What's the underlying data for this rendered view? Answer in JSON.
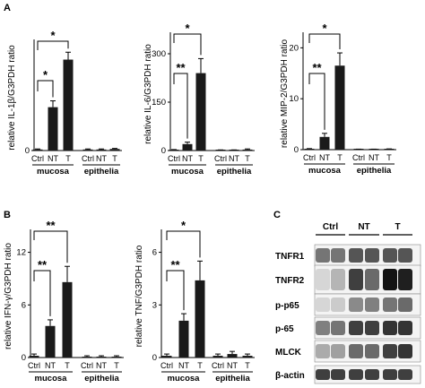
{
  "panels": {
    "A": "A",
    "B": "B",
    "C": "C"
  },
  "chart_data": [
    {
      "type": "bar",
      "panel": "A",
      "ylabel": "relative IL-1β/G3PDH ratio",
      "categories": [
        "Ctrl",
        "NT",
        "T",
        "Ctrl",
        "NT",
        "T"
      ],
      "groups": [
        "mucosa",
        "epithelia"
      ],
      "values": [
        0.1,
        4.1,
        8.6,
        0.1,
        0.1,
        0.15
      ],
      "errors": [
        0.05,
        0.6,
        0.7,
        0.05,
        0.05,
        0.05
      ],
      "ylim": [
        0,
        10
      ],
      "yticks": [
        "0"
      ],
      "significance": [
        {
          "from": 0,
          "to": 1,
          "label": "*"
        },
        {
          "from": 0,
          "to": 2,
          "label": "*"
        }
      ]
    },
    {
      "type": "bar",
      "panel": "A",
      "ylabel": "relative IL-6/G3PDH ratio",
      "categories": [
        "Ctrl",
        "NT",
        "T",
        "Ctrl",
        "NT",
        "T"
      ],
      "groups": [
        "mucosa",
        "epithelia"
      ],
      "values": [
        2,
        20,
        240,
        1,
        1,
        3
      ],
      "errors": [
        1,
        6,
        45,
        1,
        1,
        2
      ],
      "ylim": [
        0,
        350
      ],
      "yticks": [
        "0",
        "150",
        "300"
      ],
      "significance": [
        {
          "from": 0,
          "to": 1,
          "label": "**"
        },
        {
          "from": 0,
          "to": 2,
          "label": "*"
        }
      ]
    },
    {
      "type": "bar",
      "panel": "A",
      "ylabel": "relative MIP-2/G3PDH ratio",
      "categories": [
        "Ctrl",
        "NT",
        "T",
        "Ctrl",
        "NT",
        "T"
      ],
      "groups": [
        "mucosa",
        "epithelia"
      ],
      "values": [
        0.1,
        2.5,
        16.5,
        0.05,
        0.05,
        0.1
      ],
      "errors": [
        0.1,
        0.7,
        2.5,
        0.05,
        0.05,
        0.05
      ],
      "ylim": [
        0,
        22
      ],
      "yticks": [
        "0",
        "10",
        "20"
      ],
      "significance": [
        {
          "from": 0,
          "to": 1,
          "label": "**"
        },
        {
          "from": 0,
          "to": 2,
          "label": "*"
        }
      ]
    },
    {
      "type": "bar",
      "panel": "B",
      "ylabel": "relative IFN-γ/G3PDH ratio",
      "categories": [
        "Ctrl",
        "NT",
        "T",
        "Ctrl",
        "NT",
        "T"
      ],
      "groups": [
        "mucosa",
        "epithelia"
      ],
      "values": [
        0.2,
        3.6,
        8.6,
        0.1,
        0.1,
        0.1
      ],
      "errors": [
        0.2,
        0.7,
        1.8,
        0.1,
        0.1,
        0.1
      ],
      "ylim": [
        0,
        14
      ],
      "yticks": [
        "0",
        "6",
        "12"
      ],
      "significance": [
        {
          "from": 0,
          "to": 1,
          "label": "**"
        },
        {
          "from": 0,
          "to": 2,
          "label": "**"
        }
      ]
    },
    {
      "type": "bar",
      "panel": "B",
      "ylabel": "relative TNF/G3PDH ratio",
      "categories": [
        "Ctrl",
        "NT",
        "T",
        "Ctrl",
        "NT",
        "T"
      ],
      "groups": [
        "mucosa",
        "epithelia"
      ],
      "values": [
        0.1,
        2.1,
        4.4,
        0.1,
        0.2,
        0.1
      ],
      "errors": [
        0.1,
        0.4,
        1.1,
        0.1,
        0.15,
        0.1
      ],
      "ylim": [
        0,
        7
      ],
      "yticks": [
        "0",
        "3",
        "6"
      ],
      "significance": [
        {
          "from": 0,
          "to": 1,
          "label": "**"
        },
        {
          "from": 0,
          "to": 2,
          "label": "*"
        }
      ]
    }
  ],
  "blot": {
    "lanes": [
      "Ctrl",
      "NT",
      "T"
    ],
    "rows": [
      {
        "label": "TNFR1",
        "intensity": [
          0.55,
          0.55,
          0.7,
          0.7,
          0.7,
          0.7
        ]
      },
      {
        "label": "TNFR2",
        "intensity": [
          0.1,
          0.25,
          0.8,
          0.6,
          1.0,
          0.95
        ]
      },
      {
        "label": "p-p65",
        "intensity": [
          0.1,
          0.15,
          0.45,
          0.5,
          0.55,
          0.6
        ]
      },
      {
        "label": "p-65",
        "intensity": [
          0.5,
          0.55,
          0.8,
          0.8,
          0.85,
          0.85
        ]
      },
      {
        "label": "MLCK",
        "intensity": [
          0.3,
          0.35,
          0.6,
          0.6,
          0.8,
          0.85
        ]
      },
      {
        "label": "β-actin",
        "intensity": [
          0.8,
          0.8,
          0.8,
          0.8,
          0.8,
          0.8
        ]
      }
    ]
  }
}
